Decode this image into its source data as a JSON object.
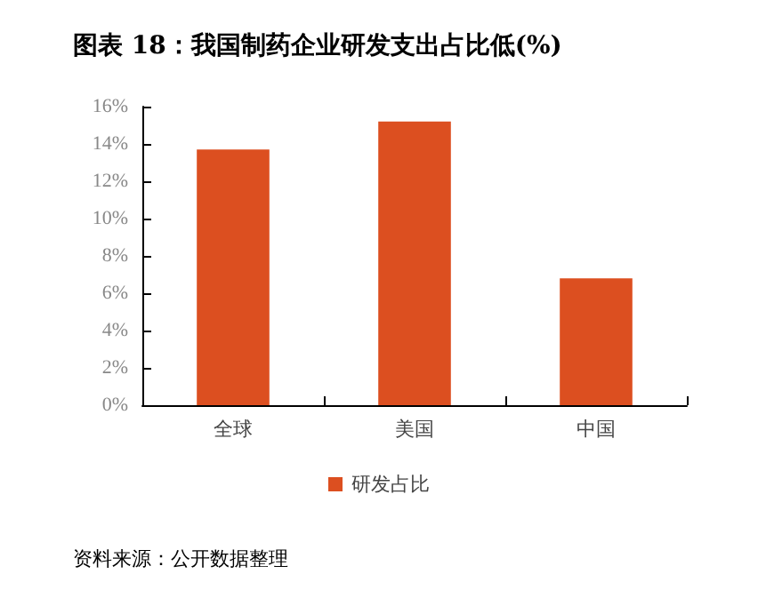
{
  "chart_data": {
    "type": "bar",
    "title": "图表 18：我国制药企业研发支出占比低(%)",
    "categories": [
      "全球",
      "美国",
      "中国"
    ],
    "series": [
      {
        "name": "研发占比",
        "color": "#dc4f20",
        "values": [
          13.7,
          15.2,
          6.8
        ]
      }
    ],
    "ylim": [
      0,
      16
    ],
    "yticks": [
      {
        "value": 0,
        "label": "0%"
      },
      {
        "value": 2,
        "label": "2%"
      },
      {
        "value": 4,
        "label": "4%"
      },
      {
        "value": 6,
        "label": "6%"
      },
      {
        "value": 8,
        "label": "8%"
      },
      {
        "value": 10,
        "label": "10%"
      },
      {
        "value": 12,
        "label": "12%"
      },
      {
        "value": 14,
        "label": "14%"
      },
      {
        "value": 16,
        "label": "16%"
      }
    ],
    "grid": false,
    "legend": "bottom",
    "annotations": [
      "资料来源：公开数据整理"
    ]
  }
}
